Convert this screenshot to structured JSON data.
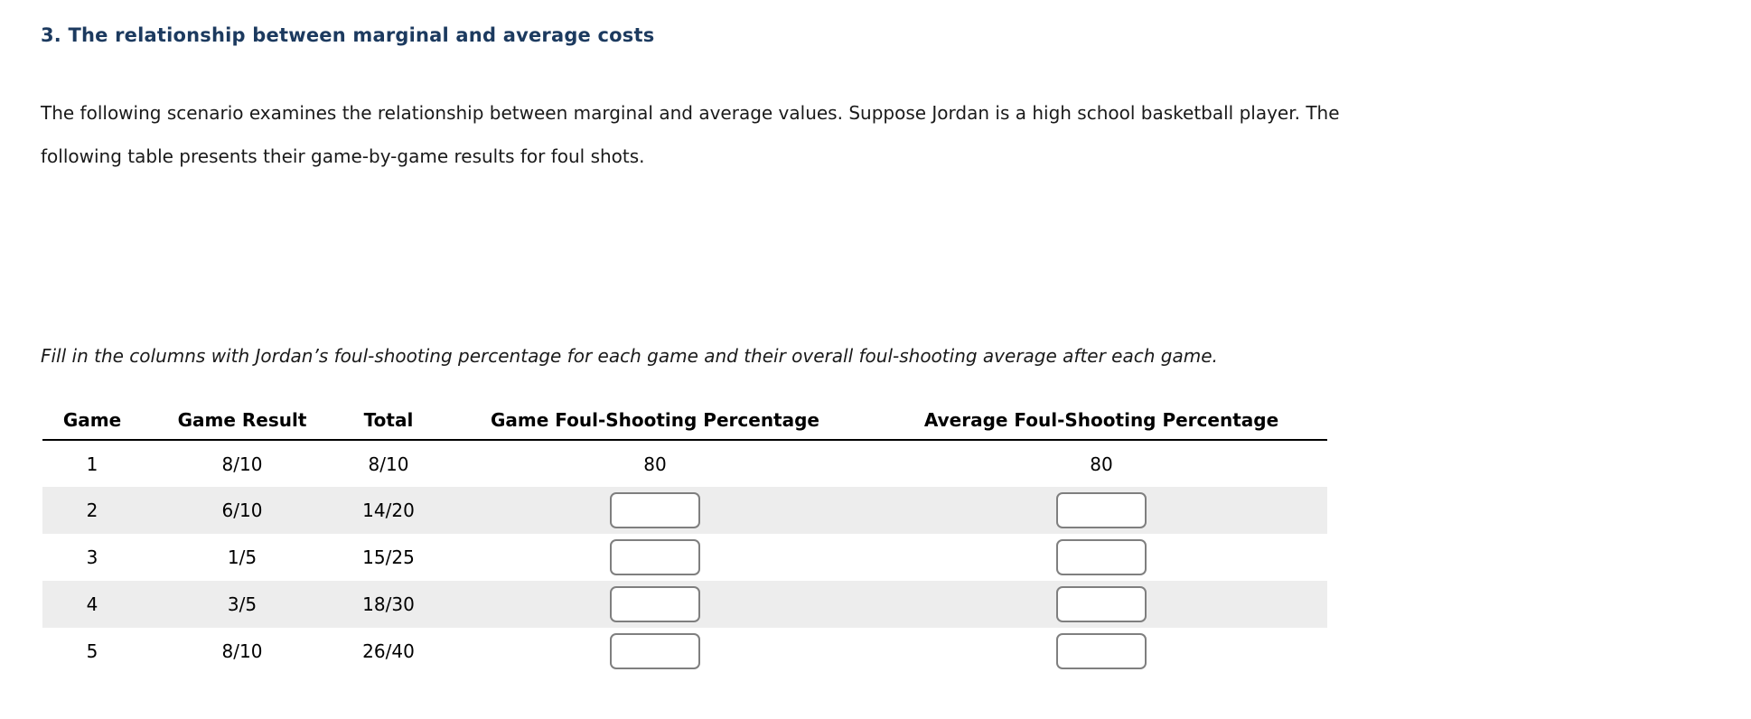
{
  "colors": {
    "heading_navy": "#1c3a5f",
    "body_text": "#1a1a1a",
    "row_stripe": "#ededed",
    "header_rule": "#000000",
    "input_border": "#7f7f7f"
  },
  "page": {
    "heading": "3. The relationship between marginal and average costs",
    "intro_lines": [
      "The following scenario examines the relationship between marginal and average values. Suppose Jordan is a high school basketball player. The",
      "following table presents their game-by-game results for foul shots."
    ],
    "instruction": "Fill in the columns with Jordan’s foul-shooting percentage for each game and their overall foul-shooting average after each game."
  },
  "table": {
    "columns": [
      "Game",
      "Game Result",
      "Total",
      "Game Foul-Shooting Percentage",
      "Average Foul-Shooting Percentage"
    ],
    "rows": [
      {
        "game": "1",
        "result": "8/10",
        "total": "8/10",
        "game_pct": "80",
        "avg_pct": "80",
        "has_inputs": false
      },
      {
        "game": "2",
        "result": "6/10",
        "total": "14/20",
        "game_pct": "",
        "avg_pct": "",
        "has_inputs": true
      },
      {
        "game": "3",
        "result": "1/5",
        "total": "15/25",
        "game_pct": "",
        "avg_pct": "",
        "has_inputs": true
      },
      {
        "game": "4",
        "result": "3/5",
        "total": "18/30",
        "game_pct": "",
        "avg_pct": "",
        "has_inputs": true
      },
      {
        "game": "5",
        "result": "8/10",
        "total": "26/40",
        "game_pct": "",
        "avg_pct": "",
        "has_inputs": true
      }
    ]
  }
}
